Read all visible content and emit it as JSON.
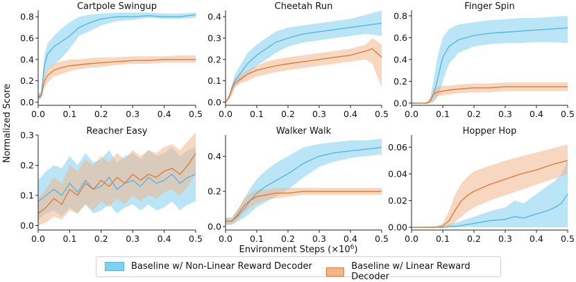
{
  "figure": {
    "ylabel": "Normalized Score",
    "xlabel": "Environment Steps (×10",
    "xlabel_exp": "6",
    "xlabel_close": ")"
  },
  "colors": {
    "nonlinear": "#58b5e1",
    "linear": "#e07b39",
    "nonlinear_fill": "#80cff0",
    "linear_fill": "#f3b68c"
  },
  "legend": {
    "nonlinear": "Baseline w/ Non-Linear Reward Decoder",
    "linear": "Baseline w/ Linear Reward Decoder"
  },
  "chart_data": [
    {
      "type": "line",
      "title": "Cartpole Swingup",
      "xlim": [
        0,
        0.5
      ],
      "ylim": [
        -0.03,
        0.86
      ],
      "xticks": [
        "0.0",
        "0.1",
        "0.2",
        "0.3",
        "0.4",
        "0.5"
      ],
      "yticks": [
        "0.0",
        "0.2",
        "0.4",
        "0.6",
        "0.8"
      ],
      "ytick_values": [
        0,
        0.2,
        0.4,
        0.6,
        0.8
      ],
      "series": [
        {
          "name": "Baseline w/ Non-Linear Reward Decoder",
          "x": [
            0,
            0.01,
            0.02,
            0.03,
            0.05,
            0.07,
            0.1,
            0.13,
            0.16,
            0.2,
            0.25,
            0.3,
            0.35,
            0.4,
            0.45,
            0.5
          ],
          "mean": [
            0.05,
            0.07,
            0.35,
            0.45,
            0.52,
            0.56,
            0.62,
            0.7,
            0.74,
            0.78,
            0.8,
            0.8,
            0.81,
            0.8,
            0.8,
            0.82
          ],
          "low": [
            0.02,
            0.04,
            0.22,
            0.3,
            0.35,
            0.4,
            0.5,
            0.62,
            0.66,
            0.72,
            0.76,
            0.77,
            0.79,
            0.78,
            0.78,
            0.79
          ],
          "high": [
            0.08,
            0.1,
            0.45,
            0.55,
            0.62,
            0.68,
            0.75,
            0.8,
            0.82,
            0.83,
            0.84,
            0.84,
            0.84,
            0.83,
            0.83,
            0.84
          ]
        },
        {
          "name": "Baseline w/ Linear Reward Decoder",
          "x": [
            0,
            0.01,
            0.02,
            0.03,
            0.05,
            0.07,
            0.1,
            0.13,
            0.16,
            0.2,
            0.25,
            0.3,
            0.35,
            0.4,
            0.45,
            0.5
          ],
          "mean": [
            0.04,
            0.06,
            0.2,
            0.25,
            0.3,
            0.32,
            0.34,
            0.35,
            0.36,
            0.37,
            0.38,
            0.39,
            0.39,
            0.4,
            0.4,
            0.4
          ],
          "low": [
            0.02,
            0.04,
            0.14,
            0.18,
            0.24,
            0.26,
            0.29,
            0.31,
            0.32,
            0.33,
            0.35,
            0.36,
            0.36,
            0.37,
            0.37,
            0.37
          ],
          "high": [
            0.07,
            0.09,
            0.26,
            0.31,
            0.36,
            0.38,
            0.4,
            0.4,
            0.41,
            0.42,
            0.42,
            0.43,
            0.43,
            0.43,
            0.44,
            0.44
          ]
        }
      ]
    },
    {
      "type": "line",
      "title": "Cheetah Run",
      "xlim": [
        0,
        0.5
      ],
      "ylim": [
        -0.015,
        0.43
      ],
      "xticks": [
        "0.0",
        "0.1",
        "0.2",
        "0.3",
        "0.4",
        "0.5"
      ],
      "yticks": [
        "0.0",
        "0.1",
        "0.2",
        "0.3",
        "0.4"
      ],
      "ytick_values": [
        0,
        0.1,
        0.2,
        0.3,
        0.4
      ],
      "series": [
        {
          "name": "Baseline w/ Non-Linear Reward Decoder",
          "x": [
            0,
            0.01,
            0.02,
            0.03,
            0.05,
            0.07,
            0.1,
            0.13,
            0.16,
            0.2,
            0.25,
            0.3,
            0.35,
            0.4,
            0.45,
            0.5
          ],
          "mean": [
            0,
            0.02,
            0.06,
            0.1,
            0.14,
            0.18,
            0.22,
            0.25,
            0.28,
            0.3,
            0.32,
            0.33,
            0.34,
            0.35,
            0.36,
            0.37
          ],
          "low": [
            0,
            0.01,
            0.03,
            0.07,
            0.1,
            0.13,
            0.17,
            0.2,
            0.23,
            0.26,
            0.28,
            0.29,
            0.3,
            0.31,
            0.32,
            0.31
          ],
          "high": [
            0,
            0.03,
            0.08,
            0.13,
            0.18,
            0.23,
            0.27,
            0.3,
            0.33,
            0.35,
            0.36,
            0.37,
            0.38,
            0.39,
            0.41,
            0.43
          ]
        },
        {
          "name": "Baseline w/ Linear Reward Decoder",
          "x": [
            0,
            0.01,
            0.02,
            0.03,
            0.05,
            0.07,
            0.1,
            0.13,
            0.16,
            0.2,
            0.25,
            0.3,
            0.35,
            0.4,
            0.45,
            0.47,
            0.5
          ],
          "mean": [
            0,
            0.02,
            0.06,
            0.09,
            0.11,
            0.13,
            0.15,
            0.16,
            0.17,
            0.18,
            0.19,
            0.2,
            0.21,
            0.22,
            0.24,
            0.25,
            0.21
          ],
          "low": [
            0,
            0.01,
            0.04,
            0.07,
            0.09,
            0.1,
            0.12,
            0.13,
            0.14,
            0.15,
            0.16,
            0.17,
            0.18,
            0.19,
            0.2,
            0.18,
            0.07
          ],
          "high": [
            0,
            0.03,
            0.08,
            0.11,
            0.13,
            0.15,
            0.17,
            0.19,
            0.2,
            0.21,
            0.22,
            0.23,
            0.24,
            0.25,
            0.27,
            0.3,
            0.27
          ]
        }
      ]
    },
    {
      "type": "line",
      "title": "Finger Spin",
      "xlim": [
        0,
        0.5
      ],
      "ylim": [
        -0.02,
        0.85
      ],
      "xticks": [
        "0.0",
        "0.1",
        "0.2",
        "0.3",
        "0.4",
        "0.5"
      ],
      "yticks": [
        "0.0",
        "0.2",
        "0.4",
        "0.6",
        "0.8"
      ],
      "ytick_values": [
        0,
        0.2,
        0.4,
        0.6,
        0.8
      ],
      "series": [
        {
          "name": "Baseline w/ Non-Linear Reward Decoder",
          "x": [
            0,
            0.03,
            0.05,
            0.06,
            0.07,
            0.08,
            0.09,
            0.1,
            0.12,
            0.15,
            0.2,
            0.25,
            0.3,
            0.35,
            0.4,
            0.45,
            0.5
          ],
          "mean": [
            0,
            0,
            0,
            0.02,
            0.08,
            0.18,
            0.3,
            0.42,
            0.52,
            0.58,
            0.62,
            0.64,
            0.65,
            0.66,
            0.67,
            0.68,
            0.69
          ],
          "low": [
            0,
            0,
            0,
            0,
            0.01,
            0.04,
            0.1,
            0.2,
            0.36,
            0.46,
            0.52,
            0.54,
            0.55,
            0.55,
            0.56,
            0.56,
            0.55
          ],
          "high": [
            0,
            0,
            0.01,
            0.05,
            0.2,
            0.38,
            0.5,
            0.6,
            0.68,
            0.72,
            0.74,
            0.76,
            0.77,
            0.78,
            0.78,
            0.79,
            0.8
          ]
        },
        {
          "name": "Baseline w/ Linear Reward Decoder",
          "x": [
            0,
            0.03,
            0.05,
            0.06,
            0.07,
            0.08,
            0.1,
            0.12,
            0.15,
            0.2,
            0.25,
            0.3,
            0.35,
            0.4,
            0.45,
            0.5
          ],
          "mean": [
            0,
            0,
            0,
            0.02,
            0.08,
            0.1,
            0.11,
            0.12,
            0.13,
            0.14,
            0.14,
            0.15,
            0.15,
            0.15,
            0.15,
            0.15
          ],
          "low": [
            0,
            0,
            0,
            0,
            0.03,
            0.06,
            0.07,
            0.08,
            0.09,
            0.1,
            0.1,
            0.11,
            0.11,
            0.11,
            0.11,
            0.11
          ],
          "high": [
            0,
            0,
            0.01,
            0.05,
            0.13,
            0.15,
            0.16,
            0.16,
            0.17,
            0.18,
            0.18,
            0.19,
            0.19,
            0.19,
            0.19,
            0.19
          ]
        }
      ]
    },
    {
      "type": "line",
      "title": "Reacher Easy",
      "xlim": [
        0,
        0.5
      ],
      "ylim": [
        -0.015,
        0.3
      ],
      "xticks": [
        "0.0",
        "0.1",
        "0.2",
        "0.3",
        "0.4",
        "0.5"
      ],
      "yticks": [
        "0.0",
        "0.1",
        "0.2",
        "0.3"
      ],
      "ytick_values": [
        0,
        0.1,
        0.2,
        0.3
      ],
      "series": [
        {
          "name": "Baseline w/ Non-Linear Reward Decoder",
          "x": [
            0,
            0.025,
            0.05,
            0.075,
            0.1,
            0.125,
            0.15,
            0.175,
            0.2,
            0.225,
            0.25,
            0.275,
            0.3,
            0.325,
            0.35,
            0.375,
            0.4,
            0.425,
            0.45,
            0.475,
            0.5
          ],
          "mean": [
            0.08,
            0.1,
            0.12,
            0.1,
            0.14,
            0.11,
            0.15,
            0.12,
            0.13,
            0.16,
            0.12,
            0.14,
            0.15,
            0.13,
            0.16,
            0.14,
            0.15,
            0.17,
            0.14,
            0.16,
            0.17
          ],
          "low": [
            0.02,
            0.04,
            0.05,
            0.03,
            0.06,
            0.04,
            0.07,
            0.04,
            0.05,
            0.07,
            0.04,
            0.06,
            0.07,
            0.05,
            0.07,
            0.05,
            0.06,
            0.08,
            0.05,
            0.07,
            0.08
          ],
          "high": [
            0.15,
            0.18,
            0.2,
            0.19,
            0.23,
            0.2,
            0.24,
            0.21,
            0.22,
            0.25,
            0.21,
            0.23,
            0.24,
            0.22,
            0.25,
            0.23,
            0.24,
            0.26,
            0.23,
            0.25,
            0.26
          ]
        },
        {
          "name": "Baseline w/ Linear Reward Decoder",
          "x": [
            0,
            0.025,
            0.05,
            0.075,
            0.1,
            0.125,
            0.15,
            0.175,
            0.2,
            0.225,
            0.25,
            0.275,
            0.3,
            0.325,
            0.35,
            0.375,
            0.4,
            0.425,
            0.45,
            0.475,
            0.5
          ],
          "mean": [
            0.04,
            0.06,
            0.09,
            0.07,
            0.12,
            0.1,
            0.14,
            0.12,
            0.15,
            0.13,
            0.16,
            0.14,
            0.17,
            0.15,
            0.17,
            0.16,
            0.18,
            0.19,
            0.17,
            0.2,
            0.24
          ],
          "low": [
            0.0,
            0.01,
            0.03,
            0.02,
            0.05,
            0.04,
            0.07,
            0.05,
            0.08,
            0.06,
            0.09,
            0.07,
            0.1,
            0.08,
            0.1,
            0.09,
            0.11,
            0.12,
            0.1,
            0.13,
            0.17
          ],
          "high": [
            0.09,
            0.12,
            0.16,
            0.14,
            0.2,
            0.18,
            0.22,
            0.2,
            0.23,
            0.21,
            0.24,
            0.22,
            0.25,
            0.23,
            0.25,
            0.24,
            0.26,
            0.27,
            0.25,
            0.28,
            0.31
          ]
        }
      ]
    },
    {
      "type": "line",
      "title": "Walker Walk",
      "xlim": [
        0,
        0.5
      ],
      "ylim": [
        -0.02,
        0.52
      ],
      "xticks": [
        "0.0",
        "0.1",
        "0.2",
        "0.3",
        "0.4",
        "0.5"
      ],
      "yticks": [
        "0.0",
        "0.2",
        "0.4"
      ],
      "ytick_values": [
        0,
        0.2,
        0.4
      ],
      "series": [
        {
          "name": "Baseline w/ Non-Linear Reward Decoder",
          "x": [
            0,
            0.02,
            0.04,
            0.06,
            0.08,
            0.1,
            0.13,
            0.16,
            0.2,
            0.25,
            0.3,
            0.35,
            0.4,
            0.45,
            0.5
          ],
          "mean": [
            0.03,
            0.03,
            0.06,
            0.1,
            0.15,
            0.19,
            0.23,
            0.26,
            0.3,
            0.36,
            0.4,
            0.42,
            0.43,
            0.44,
            0.45
          ],
          "low": [
            0.01,
            0.01,
            0.03,
            0.05,
            0.08,
            0.11,
            0.14,
            0.17,
            0.21,
            0.28,
            0.34,
            0.37,
            0.39,
            0.4,
            0.41
          ],
          "high": [
            0.05,
            0.05,
            0.1,
            0.16,
            0.22,
            0.27,
            0.32,
            0.36,
            0.4,
            0.45,
            0.47,
            0.48,
            0.49,
            0.49,
            0.5
          ]
        },
        {
          "name": "Baseline w/ Linear Reward Decoder",
          "x": [
            0,
            0.02,
            0.04,
            0.06,
            0.08,
            0.1,
            0.13,
            0.16,
            0.2,
            0.25,
            0.3,
            0.35,
            0.4,
            0.45,
            0.5
          ],
          "mean": [
            0.03,
            0.03,
            0.07,
            0.12,
            0.15,
            0.17,
            0.18,
            0.19,
            0.19,
            0.2,
            0.2,
            0.2,
            0.2,
            0.2,
            0.2
          ],
          "low": [
            0.01,
            0.01,
            0.04,
            0.08,
            0.11,
            0.13,
            0.15,
            0.16,
            0.17,
            0.18,
            0.18,
            0.18,
            0.18,
            0.18,
            0.18
          ],
          "high": [
            0.05,
            0.05,
            0.1,
            0.16,
            0.19,
            0.21,
            0.21,
            0.22,
            0.22,
            0.22,
            0.22,
            0.22,
            0.22,
            0.22,
            0.22
          ]
        }
      ]
    },
    {
      "type": "line",
      "title": "Hopper Hop",
      "xlim": [
        0,
        0.5
      ],
      "ylim": [
        -0.002,
        0.069
      ],
      "xticks": [
        "0.0",
        "0.1",
        "0.2",
        "0.3",
        "0.4",
        "0.5"
      ],
      "yticks": [
        "0.00",
        "0.02",
        "0.04",
        "0.06"
      ],
      "ytick_values": [
        0,
        0.02,
        0.04,
        0.06
      ],
      "series": [
        {
          "name": "Baseline w/ Non-Linear Reward Decoder",
          "x": [
            0,
            0.1,
            0.15,
            0.2,
            0.25,
            0.3,
            0.33,
            0.36,
            0.4,
            0.43,
            0.46,
            0.48,
            0.5
          ],
          "mean": [
            0,
            0,
            0.001,
            0.003,
            0.005,
            0.006,
            0.008,
            0.007,
            0.01,
            0.012,
            0.015,
            0.018,
            0.025
          ],
          "low": [
            0,
            0,
            0,
            0,
            0,
            0,
            0,
            0,
            0,
            0,
            0,
            0,
            0
          ],
          "high": [
            0,
            0.001,
            0.004,
            0.008,
            0.012,
            0.015,
            0.02,
            0.018,
            0.025,
            0.03,
            0.035,
            0.04,
            0.05
          ]
        },
        {
          "name": "Baseline w/ Linear Reward Decoder",
          "x": [
            0,
            0.08,
            0.1,
            0.12,
            0.14,
            0.16,
            0.18,
            0.2,
            0.25,
            0.3,
            0.35,
            0.4,
            0.45,
            0.5
          ],
          "mean": [
            0,
            0,
            0.001,
            0.005,
            0.013,
            0.02,
            0.024,
            0.027,
            0.032,
            0.036,
            0.04,
            0.043,
            0.047,
            0.05
          ],
          "low": [
            0,
            0,
            0,
            0,
            0.004,
            0.008,
            0.012,
            0.015,
            0.02,
            0.024,
            0.028,
            0.032,
            0.036,
            0.04
          ],
          "high": [
            0,
            0.001,
            0.003,
            0.012,
            0.025,
            0.033,
            0.038,
            0.042,
            0.046,
            0.05,
            0.053,
            0.056,
            0.059,
            0.062
          ]
        }
      ]
    }
  ]
}
